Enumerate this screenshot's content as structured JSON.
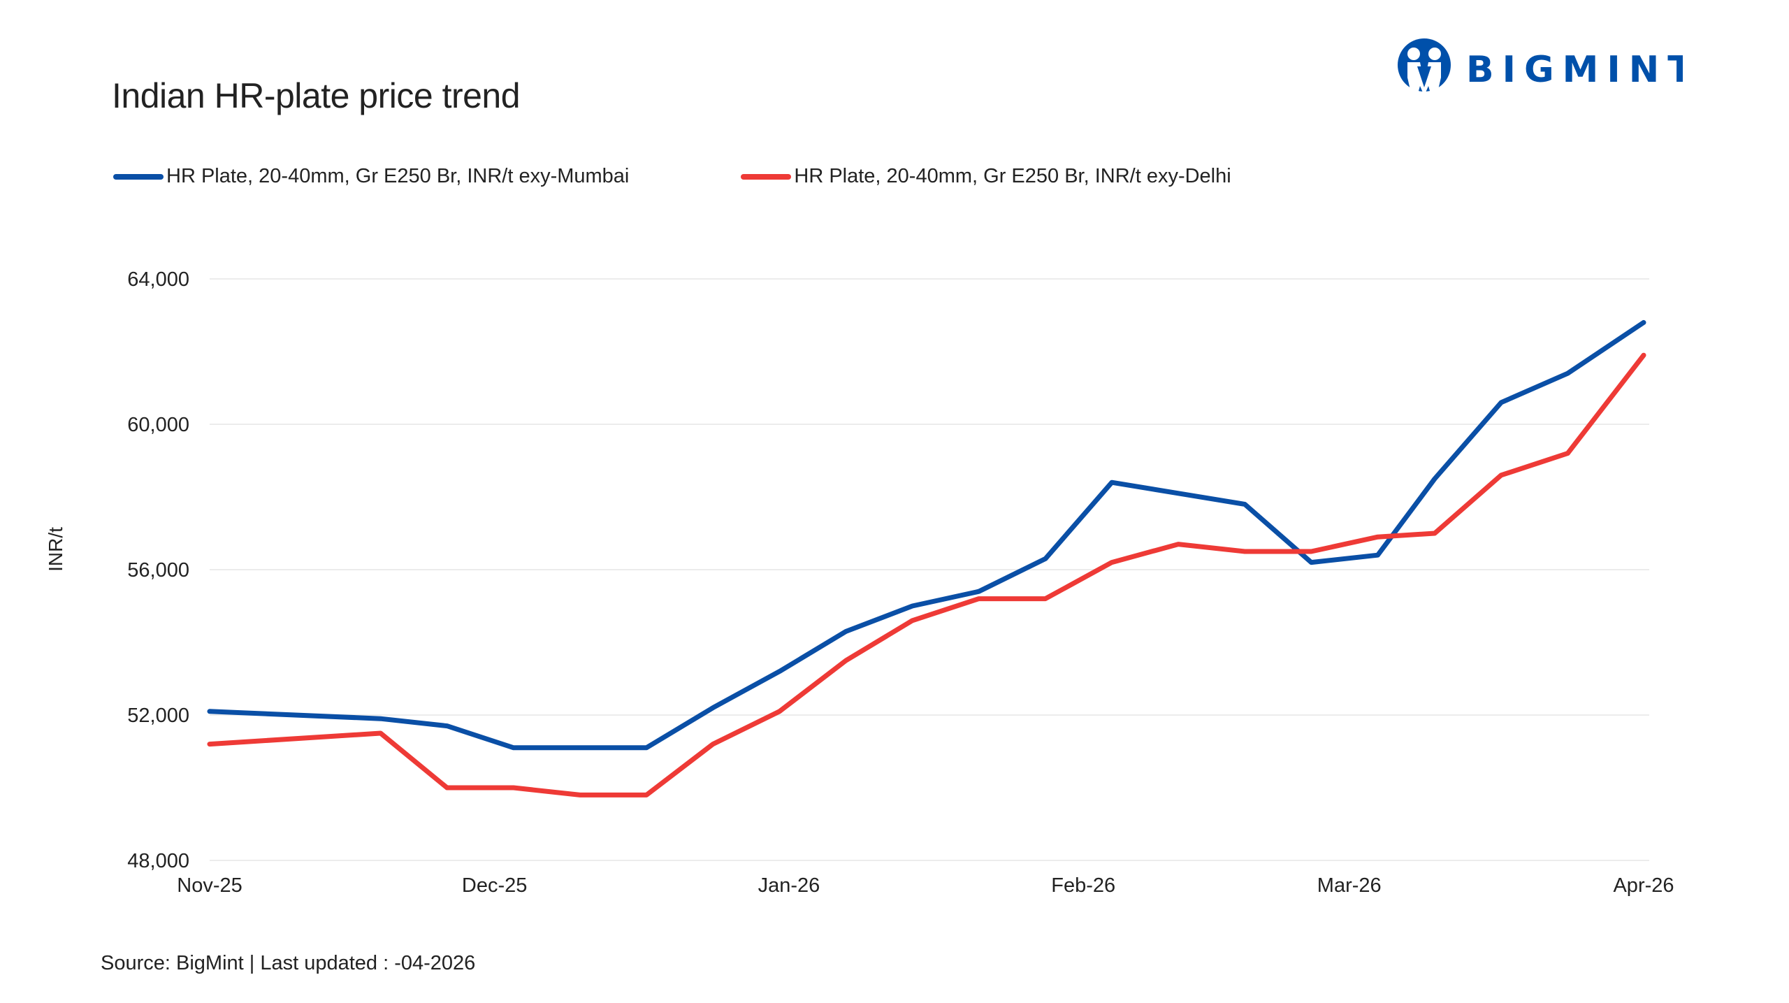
{
  "header": {
    "title": "Indian HR-plate price trend",
    "logo_text": "BIGMINT"
  },
  "footer": {
    "source": "Source: BigMint | Last updated : -04-2026"
  },
  "colors": {
    "mumbai": "#0a4fa6",
    "delhi": "#ee3a36",
    "brand": "#0050aa",
    "grid": "#ececec"
  },
  "chart_data": {
    "type": "line",
    "title": "Indian HR-plate price trend",
    "xlabel": "",
    "ylabel": "INR/t",
    "ylim": [
      48000,
      64000
    ],
    "yticks": [
      "48,000",
      "52,000",
      "56,000",
      "60,000",
      "64,000"
    ],
    "ytick_values": [
      48000,
      52000,
      56000,
      60000,
      64000
    ],
    "xlim": [
      "2025-11-01",
      "2026-04-01"
    ],
    "xticks": [
      "Nov-25",
      "Dec-25",
      "Jan-26",
      "Feb-26",
      "Mar-26",
      "Apr-26"
    ],
    "xtick_dates": [
      "2025-11-01",
      "2025-12-01",
      "2026-01-01",
      "2026-02-01",
      "2026-03-01",
      "2026-04-01"
    ],
    "grid": "horizontal",
    "legend": "top-left",
    "x": [
      "2025-11-01",
      "2025-11-19",
      "2025-11-26",
      "2025-12-03",
      "2025-12-10",
      "2025-12-17",
      "2025-12-24",
      "2025-12-31",
      "2026-01-07",
      "2026-01-14",
      "2026-01-21",
      "2026-01-28",
      "2026-02-04",
      "2026-02-11",
      "2026-02-18",
      "2026-02-25",
      "2026-03-04",
      "2026-03-10",
      "2026-03-17",
      "2026-03-24",
      "2026-04-01"
    ],
    "series": [
      {
        "name": "HR Plate, 20-40mm, Gr E250 Br, INR/t exy-Mumbai",
        "values": [
          52100,
          51900,
          51700,
          51100,
          51100,
          51100,
          52200,
          53200,
          54300,
          55000,
          55400,
          56300,
          58400,
          58100,
          57800,
          56200,
          56400,
          58500,
          60600,
          61400,
          62800
        ]
      },
      {
        "name": "HR Plate, 20-40mm, Gr E250 Br, INR/t exy-Delhi",
        "values": [
          51200,
          51500,
          50000,
          50000,
          49800,
          49800,
          51200,
          52100,
          53500,
          54600,
          55200,
          55200,
          56200,
          56700,
          56500,
          56500,
          56900,
          57000,
          58600,
          59200,
          61900
        ]
      }
    ]
  }
}
